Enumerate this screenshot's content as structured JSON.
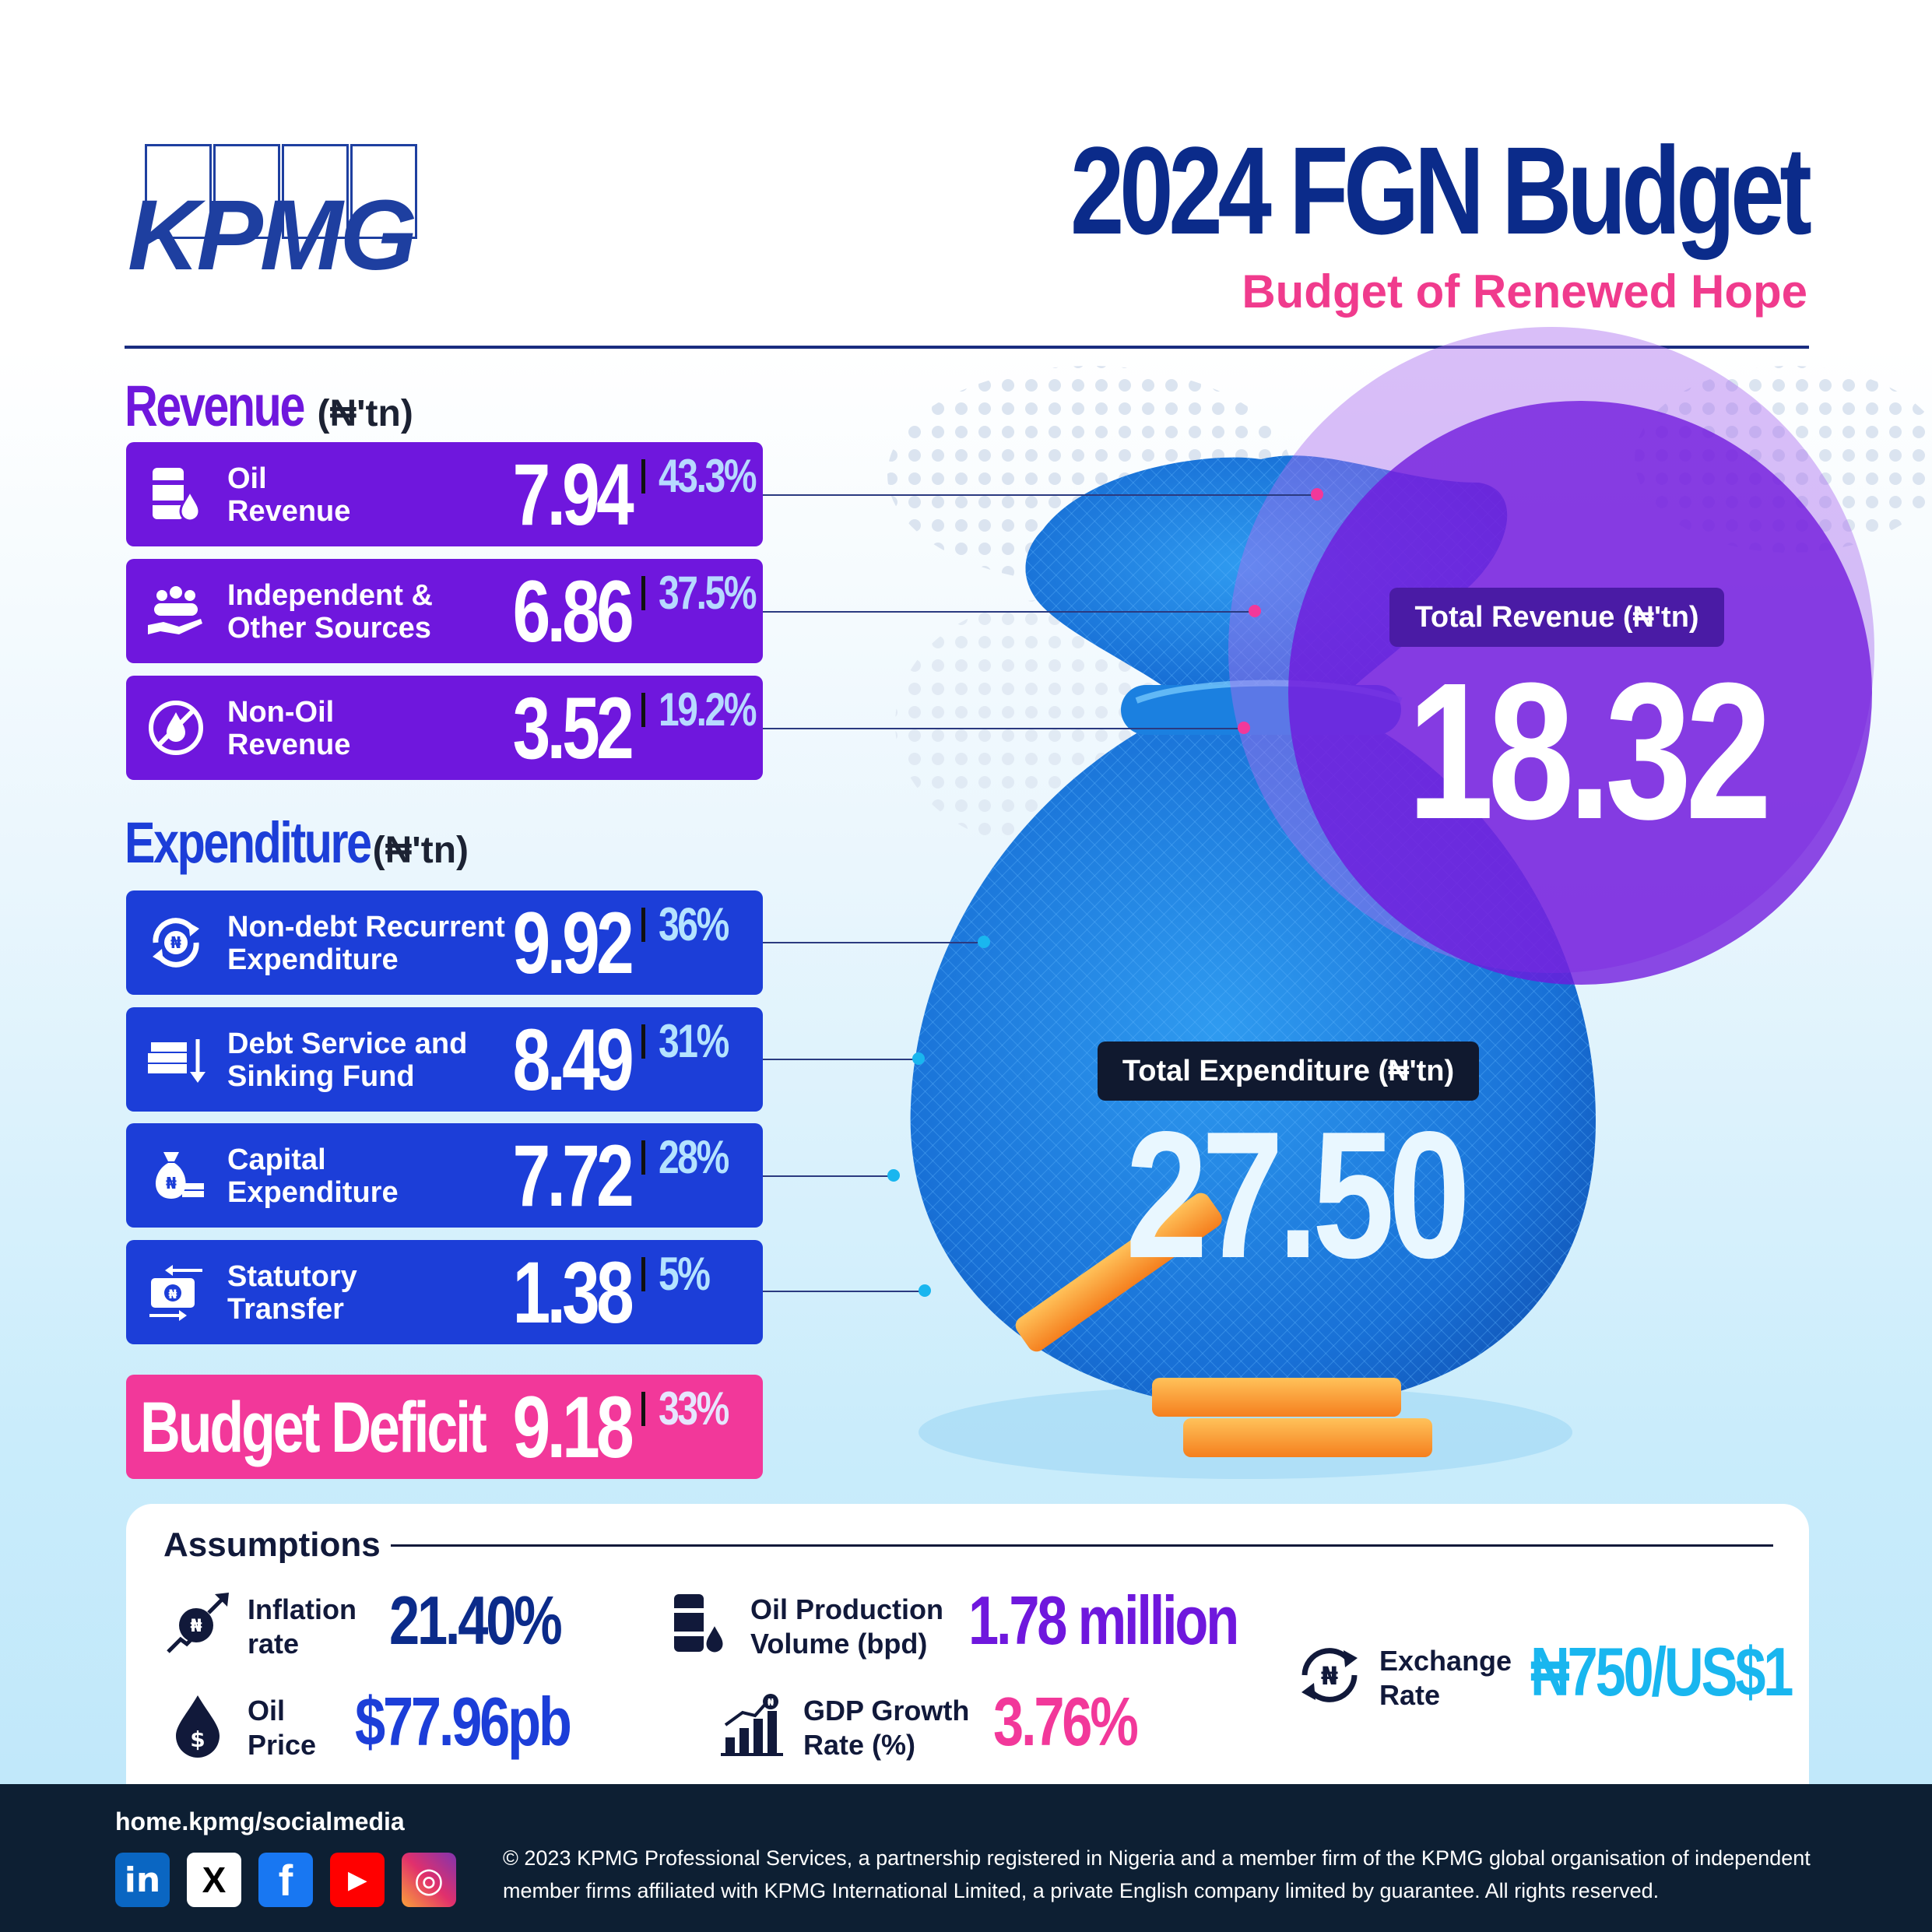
{
  "brand": {
    "logo_text": "KPMG",
    "accent": "#1e3fa0"
  },
  "header": {
    "title": "2024 FGN Budget",
    "subtitle": "Budget of Renewed Hope"
  },
  "revenue": {
    "heading": "Revenue",
    "unit": "(₦'tn)",
    "items": [
      {
        "label_1": "Oil",
        "label_2": "Revenue",
        "value": "7.94",
        "pct": "43.3%",
        "icon": "oil-barrel-icon"
      },
      {
        "label_1": "Independent &",
        "label_2": "Other Sources",
        "value": "6.86",
        "pct": "37.5%",
        "icon": "people-hand-icon"
      },
      {
        "label_1": "Non-Oil",
        "label_2": "Revenue",
        "value": "3.52",
        "pct": "19.2%",
        "icon": "no-oil-icon"
      }
    ]
  },
  "expenditure": {
    "heading": "Expenditure",
    "unit": "(₦'tn)",
    "items": [
      {
        "label_1": "Non-debt Recurrent",
        "label_2": "Expenditure",
        "value": "9.92",
        "pct": "36%",
        "icon": "naira-cycle-icon"
      },
      {
        "label_1": "Debt Service and",
        "label_2": "Sinking Fund",
        "value": "8.49",
        "pct": "31%",
        "icon": "money-stack-down-icon"
      },
      {
        "label_1": "Capital",
        "label_2": "Expenditure",
        "value": "7.72",
        "pct": "28%",
        "icon": "money-bag-icon"
      },
      {
        "label_1": "Statutory",
        "label_2": "Transfer",
        "value": "1.38",
        "pct": "5%",
        "icon": "transfer-icon"
      }
    ]
  },
  "deficit": {
    "label": "Budget Deficit",
    "value": "9.18",
    "pct": "33%"
  },
  "totals": {
    "revenue_label": "Total Revenue (₦'tn)",
    "revenue_value": "18.32",
    "expenditure_label": "Total Expenditure (₦'tn)",
    "expenditure_value": "27.50"
  },
  "assumptions": {
    "heading": "Assumptions",
    "inflation": {
      "label_1": "Inflation",
      "label_2": "rate",
      "value": "21.40%",
      "color": "#0b2b8a"
    },
    "oil_price": {
      "label_1": "Oil",
      "label_2": "Price",
      "value": "$77.96pb",
      "color": "#1c3ed8"
    },
    "oil_production": {
      "label_1": "Oil Production",
      "label_2": "Volume (bpd)",
      "value": "1.78 million",
      "color": "#6f17dd"
    },
    "gdp_growth": {
      "label_1": "GDP Growth",
      "label_2": "Rate (%)",
      "value": "3.76%",
      "color": "#f2389a"
    },
    "exchange_rate": {
      "label_1": "Exchange",
      "label_2": "Rate",
      "value": "₦750/US$1",
      "color": "#19b6ef"
    }
  },
  "footer": {
    "site": "home.kpmg/socialmedia",
    "social": [
      "in",
      "X",
      "f",
      "▶",
      "◎"
    ],
    "copyright": "© 2023 KPMG Professional Services, a partnership registered in Nigeria and a member firm of the KPMG global organisation of independent member firms affiliated with KPMG International Limited, a private English company limited by guarantee. All rights reserved."
  },
  "colors": {
    "revenue": "#6f17dd",
    "expenditure": "#1c3ed8",
    "deficit": "#f2389a",
    "title": "#0b2b8a",
    "footer": "#0d1f33"
  }
}
